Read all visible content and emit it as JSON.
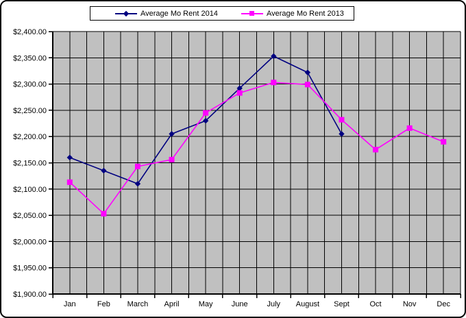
{
  "chart_data": {
    "type": "line",
    "title": "",
    "categories": [
      "Jan",
      "Feb",
      "March",
      "April",
      "May",
      "June",
      "July",
      "August",
      "Sept",
      "Oct",
      "Nov",
      "Dec"
    ],
    "series": [
      {
        "name": "Average Mo Rent 2014",
        "color": "#000080",
        "marker": "diamond",
        "values": [
          2160,
          2135,
          2110,
          2205,
          2230,
          2292,
          2353,
          2322,
          2205,
          null,
          null,
          null
        ]
      },
      {
        "name": "Average Mo Rent 2013",
        "color": "#FF00FF",
        "marker": "square",
        "values": [
          2113,
          2053,
          2143,
          2156,
          2245,
          2283,
          2303,
          2299,
          2232,
          2175,
          2216,
          2190
        ]
      }
    ],
    "y_axis": {
      "min": 1900,
      "max": 2400,
      "step": 50,
      "tick_labels_top_down": [
        "$2,400.00",
        "$2,350.00",
        "$2,300.00",
        "$2,250.00",
        "$2,200.00",
        "$2,150.00",
        "$2,100.00",
        "$2,050.00",
        "$2,000.00",
        "$1,950.00",
        "$1,900.00"
      ]
    },
    "ylim": [
      1900,
      2400
    ],
    "grid": true,
    "legend_position": "top",
    "plot_style": {
      "background": "#C0C0C0",
      "gridline_color": "#000000",
      "axis_color": "#000000",
      "text_color": "#000000"
    }
  }
}
